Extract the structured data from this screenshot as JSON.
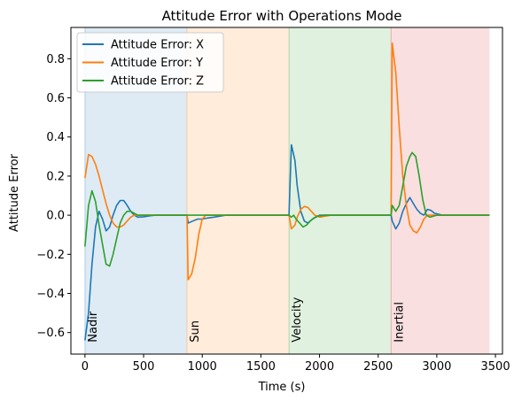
{
  "chart_data": {
    "type": "line",
    "title": "Attitude Error with Operations Mode",
    "xlabel": "Time (s)",
    "ylabel": "Attitude Error",
    "xlim": [
      -120,
      3560
    ],
    "ylim": [
      -0.71,
      0.96
    ],
    "xticks": [
      0,
      500,
      1000,
      1500,
      2000,
      2500,
      3000,
      3500
    ],
    "yticks": [
      -0.6,
      -0.4,
      -0.2,
      0.0,
      0.2,
      0.4,
      0.6,
      0.8
    ],
    "ytick_labels": [
      "−0.6",
      "−0.4",
      "−0.2",
      "0.0",
      "0.2",
      "0.4",
      "0.6",
      "0.8"
    ],
    "grid": false,
    "legend_position": "top-left",
    "regions": [
      {
        "label": "Nadir",
        "start": 0,
        "end": 870,
        "color": "#1f77b4"
      },
      {
        "label": "Sun",
        "start": 870,
        "end": 1740,
        "color": "#ff7f0e"
      },
      {
        "label": "Velocity",
        "start": 1740,
        "end": 2610,
        "color": "#2ca02c"
      },
      {
        "label": "Inertial",
        "start": 2610,
        "end": 3450,
        "color": "#d62728"
      }
    ],
    "series": [
      {
        "name": "Attitude Error: X",
        "color": "#1f77b4",
        "points": [
          [
            0,
            -0.64
          ],
          [
            30,
            -0.5
          ],
          [
            60,
            -0.25
          ],
          [
            90,
            -0.06
          ],
          [
            120,
            0.02
          ],
          [
            150,
            -0.02
          ],
          [
            180,
            -0.08
          ],
          [
            210,
            -0.06
          ],
          [
            240,
            0.0
          ],
          [
            270,
            0.05
          ],
          [
            300,
            0.075
          ],
          [
            330,
            0.075
          ],
          [
            360,
            0.05
          ],
          [
            390,
            0.02
          ],
          [
            420,
            0.0
          ],
          [
            450,
            -0.01
          ],
          [
            500,
            -0.008
          ],
          [
            550,
            -0.003
          ],
          [
            600,
            0.0
          ],
          [
            870,
            0.0
          ],
          [
            880,
            -0.04
          ],
          [
            920,
            -0.03
          ],
          [
            960,
            -0.02
          ],
          [
            1000,
            -0.02
          ],
          [
            1040,
            -0.015
          ],
          [
            1100,
            -0.01
          ],
          [
            1200,
            0.0
          ],
          [
            1740,
            0.0
          ],
          [
            1760,
            0.36
          ],
          [
            1790,
            0.28
          ],
          [
            1810,
            0.15
          ],
          [
            1840,
            0.02
          ],
          [
            1870,
            -0.03
          ],
          [
            1900,
            -0.04
          ],
          [
            1940,
            -0.02
          ],
          [
            2000,
            0.0
          ],
          [
            2610,
            0.0
          ],
          [
            2620,
            -0.03
          ],
          [
            2650,
            -0.07
          ],
          [
            2680,
            -0.04
          ],
          [
            2710,
            0.02
          ],
          [
            2740,
            0.06
          ],
          [
            2770,
            0.09
          ],
          [
            2800,
            0.06
          ],
          [
            2830,
            0.03
          ],
          [
            2860,
            0.01
          ],
          [
            2890,
            0.0
          ],
          [
            2920,
            0.03
          ],
          [
            2950,
            0.025
          ],
          [
            2980,
            0.01
          ],
          [
            3050,
            0.0
          ],
          [
            3450,
            0.0
          ]
        ]
      },
      {
        "name": "Attitude Error: Y",
        "color": "#ff7f0e",
        "points": [
          [
            0,
            0.19
          ],
          [
            30,
            0.31
          ],
          [
            60,
            0.3
          ],
          [
            90,
            0.26
          ],
          [
            120,
            0.2
          ],
          [
            150,
            0.13
          ],
          [
            180,
            0.06
          ],
          [
            210,
            0.0
          ],
          [
            240,
            -0.04
          ],
          [
            270,
            -0.06
          ],
          [
            300,
            -0.06
          ],
          [
            330,
            -0.05
          ],
          [
            360,
            -0.03
          ],
          [
            390,
            -0.01
          ],
          [
            420,
            0.0
          ],
          [
            500,
            0.0
          ],
          [
            870,
            0.0
          ],
          [
            880,
            -0.33
          ],
          [
            910,
            -0.3
          ],
          [
            940,
            -0.22
          ],
          [
            970,
            -0.1
          ],
          [
            1000,
            -0.02
          ],
          [
            1030,
            0.0
          ],
          [
            1740,
            0.0
          ],
          [
            1760,
            -0.07
          ],
          [
            1790,
            -0.05
          ],
          [
            1810,
            -0.01
          ],
          [
            1840,
            0.03
          ],
          [
            1870,
            0.045
          ],
          [
            1900,
            0.04
          ],
          [
            1930,
            0.02
          ],
          [
            1960,
            0.0
          ],
          [
            2000,
            -0.01
          ],
          [
            2050,
            -0.005
          ],
          [
            2100,
            0.0
          ],
          [
            2610,
            0.0
          ],
          [
            2620,
            0.88
          ],
          [
            2650,
            0.73
          ],
          [
            2680,
            0.45
          ],
          [
            2710,
            0.2
          ],
          [
            2740,
            0.05
          ],
          [
            2770,
            -0.05
          ],
          [
            2800,
            -0.08
          ],
          [
            2830,
            -0.09
          ],
          [
            2860,
            -0.06
          ],
          [
            2890,
            -0.02
          ],
          [
            2920,
            0.0
          ],
          [
            2960,
            0.0
          ],
          [
            3450,
            0.0
          ]
        ]
      },
      {
        "name": "Attitude Error: Z",
        "color": "#2ca02c",
        "points": [
          [
            0,
            -0.16
          ],
          [
            30,
            0.05
          ],
          [
            60,
            0.125
          ],
          [
            90,
            0.07
          ],
          [
            120,
            -0.05
          ],
          [
            150,
            -0.15
          ],
          [
            180,
            -0.25
          ],
          [
            210,
            -0.26
          ],
          [
            240,
            -0.2
          ],
          [
            270,
            -0.12
          ],
          [
            300,
            -0.04
          ],
          [
            330,
            0.0
          ],
          [
            360,
            0.02
          ],
          [
            390,
            0.02
          ],
          [
            420,
            0.01
          ],
          [
            450,
            0.0
          ],
          [
            500,
            0.0
          ],
          [
            870,
            0.0
          ],
          [
            1740,
            0.0
          ],
          [
            1760,
            -0.01
          ],
          [
            1780,
            0.0
          ],
          [
            1800,
            -0.02
          ],
          [
            1830,
            -0.04
          ],
          [
            1860,
            -0.06
          ],
          [
            1890,
            -0.05
          ],
          [
            1920,
            -0.03
          ],
          [
            1950,
            -0.015
          ],
          [
            1980,
            -0.005
          ],
          [
            2050,
            0.0
          ],
          [
            2610,
            0.0
          ],
          [
            2620,
            0.05
          ],
          [
            2650,
            0.02
          ],
          [
            2680,
            0.05
          ],
          [
            2710,
            0.15
          ],
          [
            2740,
            0.25
          ],
          [
            2770,
            0.3
          ],
          [
            2790,
            0.32
          ],
          [
            2820,
            0.3
          ],
          [
            2850,
            0.2
          ],
          [
            2880,
            0.08
          ],
          [
            2910,
            0.0
          ],
          [
            2940,
            -0.01
          ],
          [
            2970,
            -0.005
          ],
          [
            3000,
            0.0
          ],
          [
            3450,
            0.0
          ]
        ]
      }
    ]
  }
}
